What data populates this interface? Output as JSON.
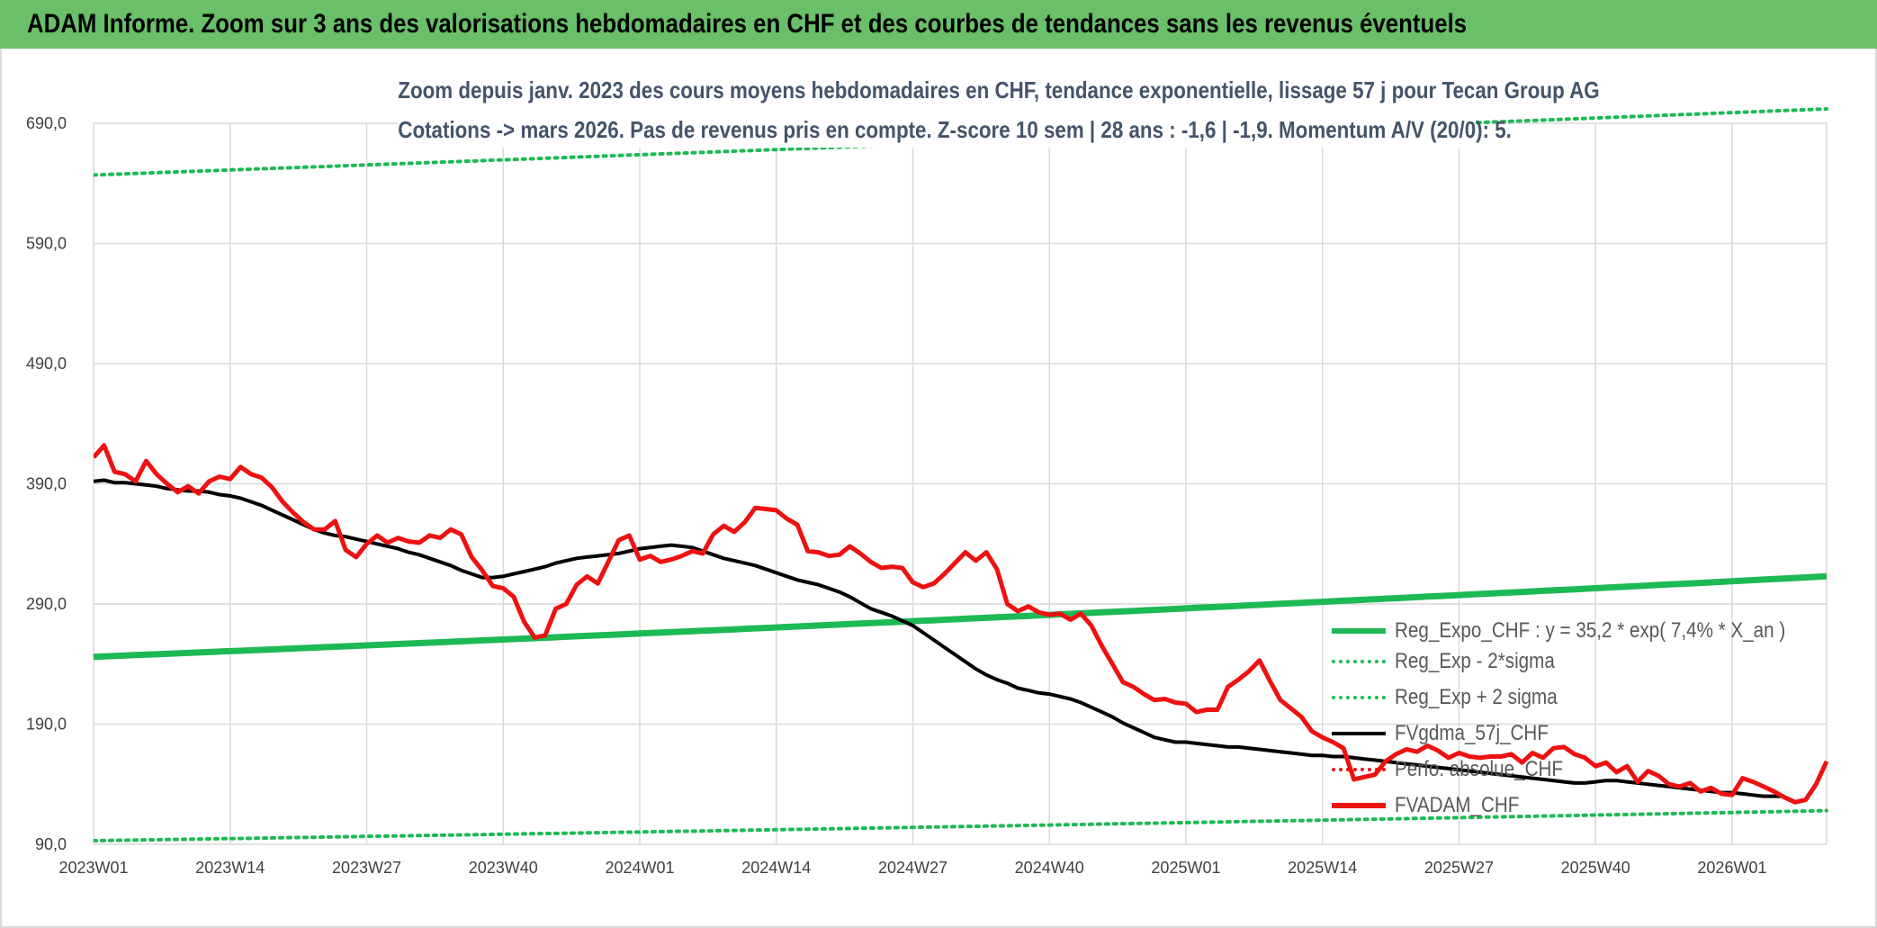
{
  "banner": {
    "title": "ADAM Informe. Zoom sur 3 ans des valorisations hebdomadaires en CHF et des courbes de tendances sans les revenus éventuels"
  },
  "colors": {
    "banner_bg": "#6abf69",
    "trend_green": "#1db954",
    "price_red": "#ee1111",
    "smooth_black": "#000000",
    "grid": "#d9d9d9"
  },
  "chart_data": {
    "type": "line",
    "title": "Zoom depuis janv. 2023 des cours moyens hebdomadaires en CHF, tendance exponentielle, lissage 57 j pour Tecan Group AG",
    "subtitle": "Cotations -> mars 2026. Pas de revenus pris en compte. Z-score 10 sem | 28 ans : -1,6 | -1,9. Momentum A/V (20/0): 5.",
    "xlabel": "",
    "ylabel": "",
    "ylim": [
      90,
      690
    ],
    "yticks": [
      "90,0",
      "190,0",
      "290,0",
      "390,0",
      "490,0",
      "590,0",
      "690,0"
    ],
    "x_tick_labels": [
      "2023W01",
      "2023W14",
      "2023W27",
      "2023W40",
      "2024W01",
      "2024W14",
      "2024W27",
      "2024W40",
      "2025W01",
      "2025W14",
      "2025W27",
      "2025W40",
      "2026W01"
    ],
    "week_count": 166,
    "grid": true,
    "legend_position": "bottom-right",
    "legend": [
      "Reg_Expo_CHF : y = 35,2 * exp( 7,4% *  X_an )",
      "Reg_Exp - 2*sigma",
      "Reg_Exp + 2 sigma",
      "FVgdma_57j_CHF",
      "Perfo. absolue_CHF",
      "FVADAM_CHF"
    ],
    "series": [
      {
        "name": "Reg_Expo_CHF : y = 35,2 * exp( 7,4% *  X_an )",
        "style": "solid-thick",
        "color": "#1db954",
        "values": [
          246,
          313
        ]
      },
      {
        "name": "Reg_Exp - 2*sigma",
        "style": "dotted",
        "color": "#1db954",
        "values": [
          93,
          118
        ]
      },
      {
        "name": "Reg_Exp + 2 sigma",
        "style": "dotted",
        "color": "#1db954",
        "values": [
          647,
          702
        ]
      },
      {
        "name": "FVgdma_57j_CHF",
        "style": "solid",
        "color": "#000000",
        "values": [
          392,
          393,
          391,
          391,
          390,
          389,
          388,
          386,
          385,
          384,
          384,
          383,
          381,
          380,
          378,
          375,
          372,
          368,
          364,
          360,
          356,
          352,
          349,
          347,
          346,
          344,
          342,
          340,
          338,
          336,
          333,
          331,
          328,
          325,
          322,
          318,
          315,
          312,
          312,
          313,
          315,
          317,
          319,
          321,
          324,
          326,
          328,
          329,
          330,
          331,
          332,
          334,
          336,
          337,
          338,
          339,
          338,
          337,
          334,
          331,
          328,
          326,
          324,
          322,
          319,
          316,
          313,
          310,
          308,
          306,
          303,
          300,
          296,
          291,
          286,
          283,
          280,
          276,
          272,
          266,
          260,
          254,
          248,
          242,
          236,
          231,
          227,
          224,
          220,
          218,
          216,
          215,
          213,
          211,
          208,
          204,
          200,
          196,
          191,
          187,
          183,
          179,
          177,
          175,
          175,
          174,
          173,
          172,
          171,
          171,
          170,
          169,
          168,
          167,
          166,
          165,
          164,
          164,
          163,
          163,
          162,
          161,
          160,
          159,
          158,
          157,
          156,
          155,
          154,
          153,
          152,
          151,
          150,
          149,
          148,
          147,
          146,
          145,
          144,
          143,
          142,
          141,
          141,
          142,
          143,
          143,
          142,
          141,
          140,
          139,
          138,
          137,
          136,
          135,
          134,
          133,
          133,
          132,
          131,
          130,
          130,
          130
        ]
      },
      {
        "name": "Perfo. absolue_CHF",
        "style": "dotted",
        "color": "#ee1111",
        "values": []
      },
      {
        "name": "FVADAM_CHF",
        "style": "solid-thick",
        "color": "#ee1111",
        "values": [
          412,
          422,
          400,
          398,
          392,
          409,
          398,
          390,
          383,
          388,
          382,
          392,
          396,
          394,
          404,
          398,
          395,
          387,
          375,
          366,
          358,
          352,
          352,
          359,
          335,
          329,
          340,
          347,
          341,
          345,
          342,
          341,
          347,
          345,
          352,
          348,
          329,
          318,
          305,
          303,
          296,
          275,
          262,
          264,
          286,
          290,
          306,
          313,
          307,
          325,
          343,
          347,
          327,
          330,
          325,
          327,
          330,
          334,
          332,
          348,
          355,
          350,
          358,
          370,
          369,
          368,
          361,
          356,
          334,
          333,
          330,
          331,
          338,
          332,
          325,
          320,
          321,
          320,
          308,
          304,
          307,
          315,
          324,
          333,
          326,
          333,
          319,
          290,
          284,
          288,
          283,
          281,
          282,
          277,
          282,
          272,
          255,
          240,
          225,
          221,
          215,
          210,
          211,
          208,
          207,
          200,
          202,
          202,
          221,
          227,
          234,
          243,
          226,
          210,
          203,
          196,
          184,
          179,
          175,
          170,
          144,
          146,
          148,
          159,
          165,
          169,
          167,
          172,
          168,
          162,
          166,
          163,
          162,
          163,
          163,
          165,
          158,
          166,
          162,
          170,
          171,
          165,
          162,
          155,
          158,
          150,
          155,
          142,
          151,
          147,
          140,
          138,
          141,
          134,
          137,
          132,
          131,
          145,
          142,
          138,
          134,
          129,
          125,
          127,
          140,
          159
        ]
      }
    ]
  }
}
